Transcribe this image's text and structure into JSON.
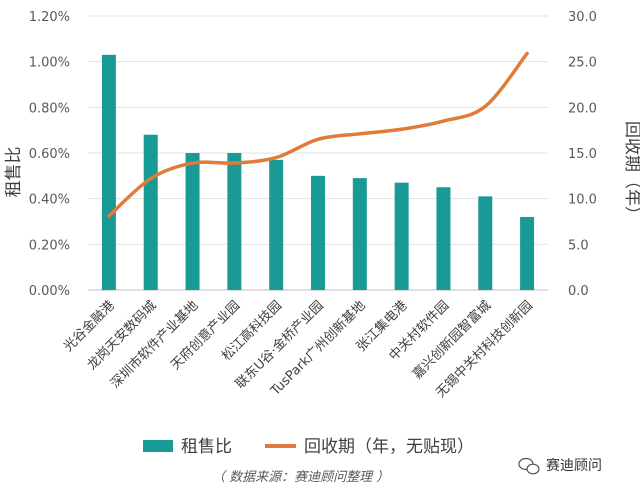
{
  "chart_data": {
    "type": "bar",
    "categories": [
      "光谷金融港",
      "龙岗天安数码城",
      "深圳市软件产业基地",
      "天府创意产业园",
      "松江高科技园",
      "联东U谷·金桥产业园",
      "TusPark广州创新基地",
      "张江集电港",
      "中关村软件园",
      "嘉兴创新园智富城",
      "无锡中关村科技创新园"
    ],
    "series": [
      {
        "name": "租售比",
        "type": "bar",
        "axis": "left",
        "color": "#1a9a96",
        "values": [
          1.03,
          0.68,
          0.6,
          0.6,
          0.57,
          0.5,
          0.49,
          0.47,
          0.45,
          0.41,
          0.32
        ]
      },
      {
        "name": "回收期（年，无贴现）",
        "type": "line",
        "axis": "right",
        "color": "#e07b39",
        "values": [
          8.1,
          12.2,
          13.9,
          13.9,
          14.5,
          16.5,
          17.1,
          17.6,
          18.5,
          20.1,
          25.9
        ]
      }
    ],
    "y_left": {
      "label": "租售比",
      "ylim": [
        0,
        1.2
      ],
      "ticks": [
        "0.00%",
        "0.20%",
        "0.40%",
        "0.60%",
        "0.80%",
        "1.00%",
        "1.20%"
      ]
    },
    "y_right": {
      "label": "回收期（年）",
      "ylim": [
        0,
        30
      ],
      "ticks": [
        "0.0",
        "5.0",
        "10.0",
        "15.0",
        "20.0",
        "25.0",
        "30.0"
      ]
    },
    "grid": true,
    "legend": "bottom",
    "source_note": "（ 数据来源：赛迪顾问整理 ）",
    "watermark": "赛迪顾问"
  }
}
